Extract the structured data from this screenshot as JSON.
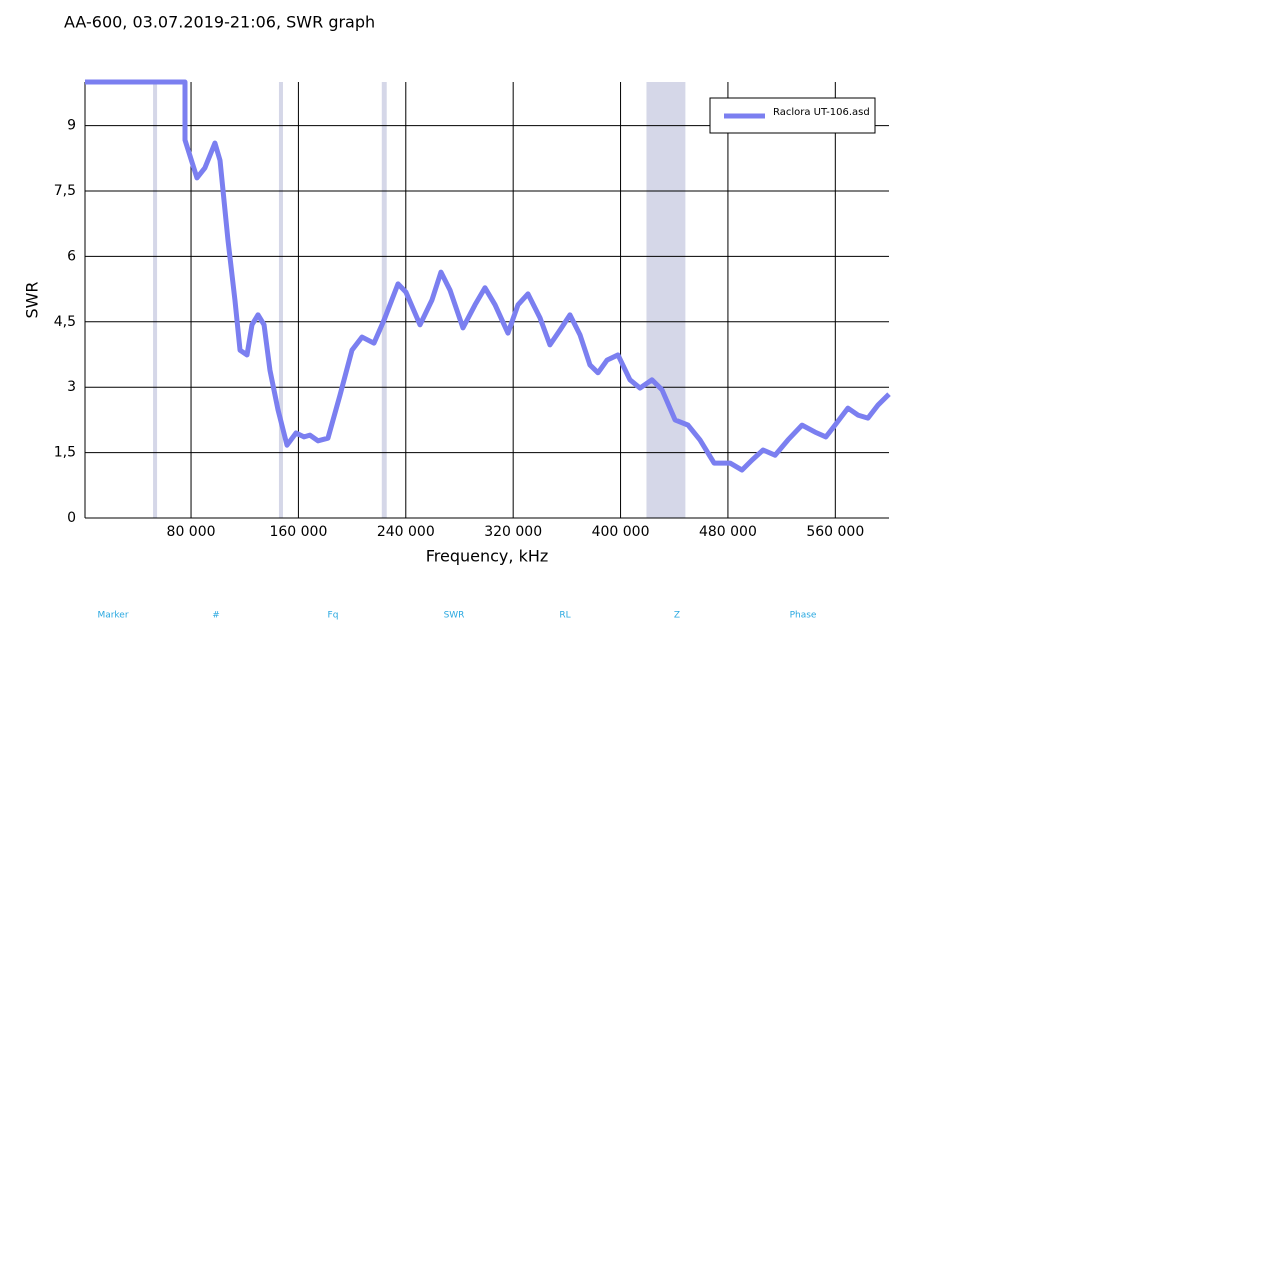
{
  "chart_data": {
    "type": "line",
    "title": "AA-600, 03.07.2019-21:06, SWR graph",
    "x_label": "Frequency, kHz",
    "y_label": "SWR",
    "xlim": [
      1000,
      600000
    ],
    "ylim": [
      0,
      10
    ],
    "xticks": [
      {
        "value": 80000,
        "label": "80 000"
      },
      {
        "value": 160000,
        "label": "160 000"
      },
      {
        "value": 240000,
        "label": "240 000"
      },
      {
        "value": 320000,
        "label": "320 000"
      },
      {
        "value": 400000,
        "label": "400 000"
      },
      {
        "value": 480000,
        "label": "480 000"
      },
      {
        "value": 560000,
        "label": "560 000"
      }
    ],
    "yticks": [
      0,
      {
        "value": 1.5,
        "label": "1,5"
      },
      3,
      {
        "value": 4.5,
        "label": "4,5"
      },
      6,
      {
        "value": 7.5,
        "label": "7,5"
      },
      9
    ],
    "grid": true,
    "bands": [
      [
        51700,
        54700
      ],
      [
        145500,
        148500
      ],
      [
        222100,
        225800
      ],
      [
        419300,
        448300
      ]
    ],
    "band_color": "#d5d7e8",
    "legend": "top-right",
    "x": [
      1000,
      75500,
      75500,
      84400,
      90300,
      97800,
      101600,
      107500,
      112700,
      116500,
      121700,
      125400,
      129900,
      134400,
      138800,
      144800,
      151500,
      158200,
      164200,
      168600,
      174600,
      182000,
      191000,
      199900,
      207400,
      216300,
      223800,
      234200,
      240100,
      250600,
      259500,
      266200,
      272900,
      282600,
      291600,
      299000,
      306500,
      316100,
      323600,
      331000,
      340000,
      347400,
      354900,
      362300,
      369800,
      377200,
      383200,
      389900,
      398100,
      407000,
      414500,
      423400,
      430900,
      440600,
      450300,
      459200,
      469700,
      481600,
      490500,
      498000,
      506200,
      515100,
      524700,
      535200,
      544900,
      553000,
      559800,
      569400,
      576900,
      584300,
      591800,
      600000
    ],
    "series": [
      {
        "name": "Raclora UT-106.asd",
        "color": "#7b7ff0",
        "values": [
          10,
          10,
          8.67,
          7.8,
          8.03,
          8.6,
          8.2,
          6.38,
          5.0,
          3.85,
          3.74,
          4.43,
          4.66,
          4.43,
          3.39,
          2.48,
          1.67,
          1.95,
          1.86,
          1.9,
          1.77,
          1.83,
          2.82,
          3.85,
          4.15,
          4.01,
          4.54,
          5.37,
          5.18,
          4.43,
          5.0,
          5.64,
          5.23,
          4.36,
          4.89,
          5.28,
          4.89,
          4.24,
          4.89,
          5.14,
          4.59,
          3.97,
          4.31,
          4.66,
          4.2,
          3.51,
          3.33,
          3.62,
          3.74,
          3.17,
          2.98,
          3.17,
          2.94,
          2.25,
          2.13,
          1.79,
          1.26,
          1.26,
          1.1,
          1.33,
          1.56,
          1.44,
          1.79,
          2.13,
          1.97,
          1.86,
          2.13,
          2.52,
          2.36,
          2.29,
          2.59,
          2.84
        ]
      }
    ]
  },
  "table": {
    "columns": [
      "Marker",
      "#",
      "Fq",
      "SWR",
      "RL",
      "Z",
      "Phase"
    ]
  }
}
